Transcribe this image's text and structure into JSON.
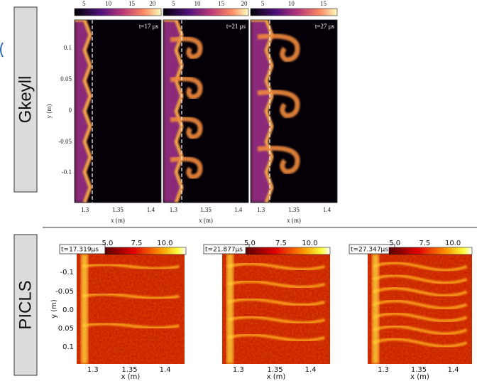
{
  "rows": [
    {
      "label": "Gkeyll",
      "y_axis_label": "y (m)",
      "y_ticks": [
        "0.1",
        "0.05",
        "0",
        "-0.05",
        "-0.1"
      ],
      "panels": [
        {
          "time": "t=17 μs",
          "colorbar_ticks": [
            "5",
            "10",
            "15",
            "20"
          ],
          "x_ticks": [
            "1.3",
            "1.35",
            "1.4"
          ],
          "x_axis_label": "x (m)"
        },
        {
          "time": "t=21 μs",
          "colorbar_ticks": [
            "5",
            "10",
            "15",
            "20"
          ],
          "x_ticks": [
            "1.3",
            "1.35",
            "1.4"
          ],
          "x_axis_label": "x (m)"
        },
        {
          "time": "t=27 μs",
          "colorbar_ticks": [
            "5",
            "10",
            "15"
          ],
          "x_ticks": [
            "1.3",
            "1.35",
            "1.4"
          ],
          "x_axis_label": "x (m)"
        }
      ]
    },
    {
      "label": "PICLS",
      "y_axis_label": "y (m)",
      "y_ticks": [
        "-0.1",
        "-0.05",
        "0.0",
        "0.05",
        "0.1"
      ],
      "panels": [
        {
          "time": "t=17.319μs",
          "colorbar_ticks": [
            "5.0",
            "7.5",
            "10.0"
          ],
          "x_ticks": [
            "1.3",
            "1.35",
            "1.4"
          ],
          "x_axis_label": "x (m)"
        },
        {
          "time": "t=21.877μs",
          "colorbar_ticks": [
            "5.0",
            "7.5",
            "10.0"
          ],
          "x_ticks": [
            "1.3",
            "1.35",
            "1.4"
          ],
          "x_axis_label": "x (m)"
        },
        {
          "time": "t=27.347μs",
          "colorbar_ticks": [
            "5.0",
            "7.5",
            "10.0"
          ],
          "x_ticks": [
            "1.3",
            "1.35",
            "1.4"
          ],
          "x_axis_label": "x (m)"
        }
      ]
    }
  ]
}
